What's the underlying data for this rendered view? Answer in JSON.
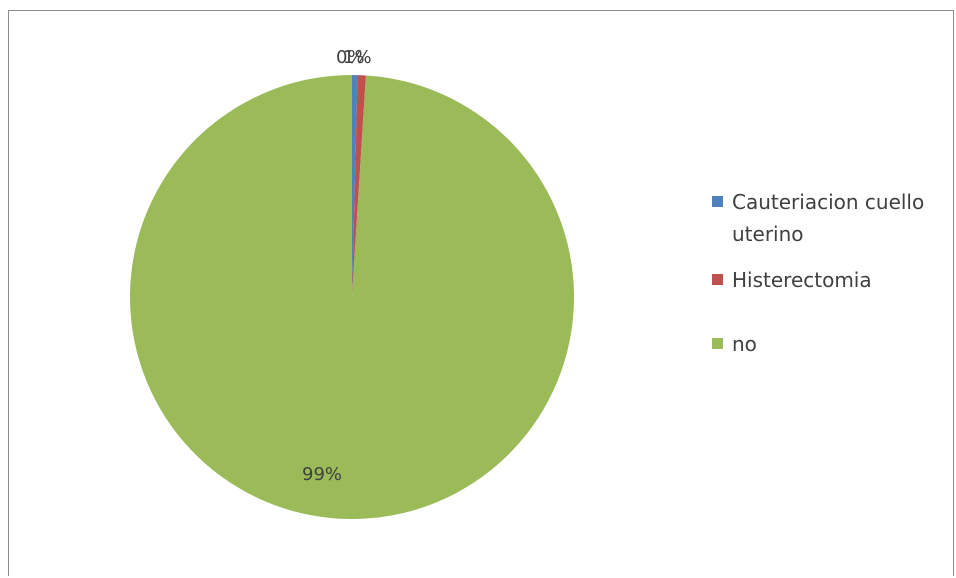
{
  "chart_data": {
    "type": "pie",
    "title": "",
    "categories": [
      "Cauteriacion cuello uterino",
      "Histerectomia",
      "no"
    ],
    "values": [
      0.4,
      0.6,
      99
    ],
    "data_labels": [
      "0%",
      "1%",
      "99%"
    ],
    "colors": [
      "#4F81BD",
      "#C0504D",
      "#9BBB59"
    ],
    "legend": {
      "position": "right",
      "entries": [
        "Cauteriacion cuello uterino",
        "Histerectomia",
        "no"
      ]
    }
  }
}
